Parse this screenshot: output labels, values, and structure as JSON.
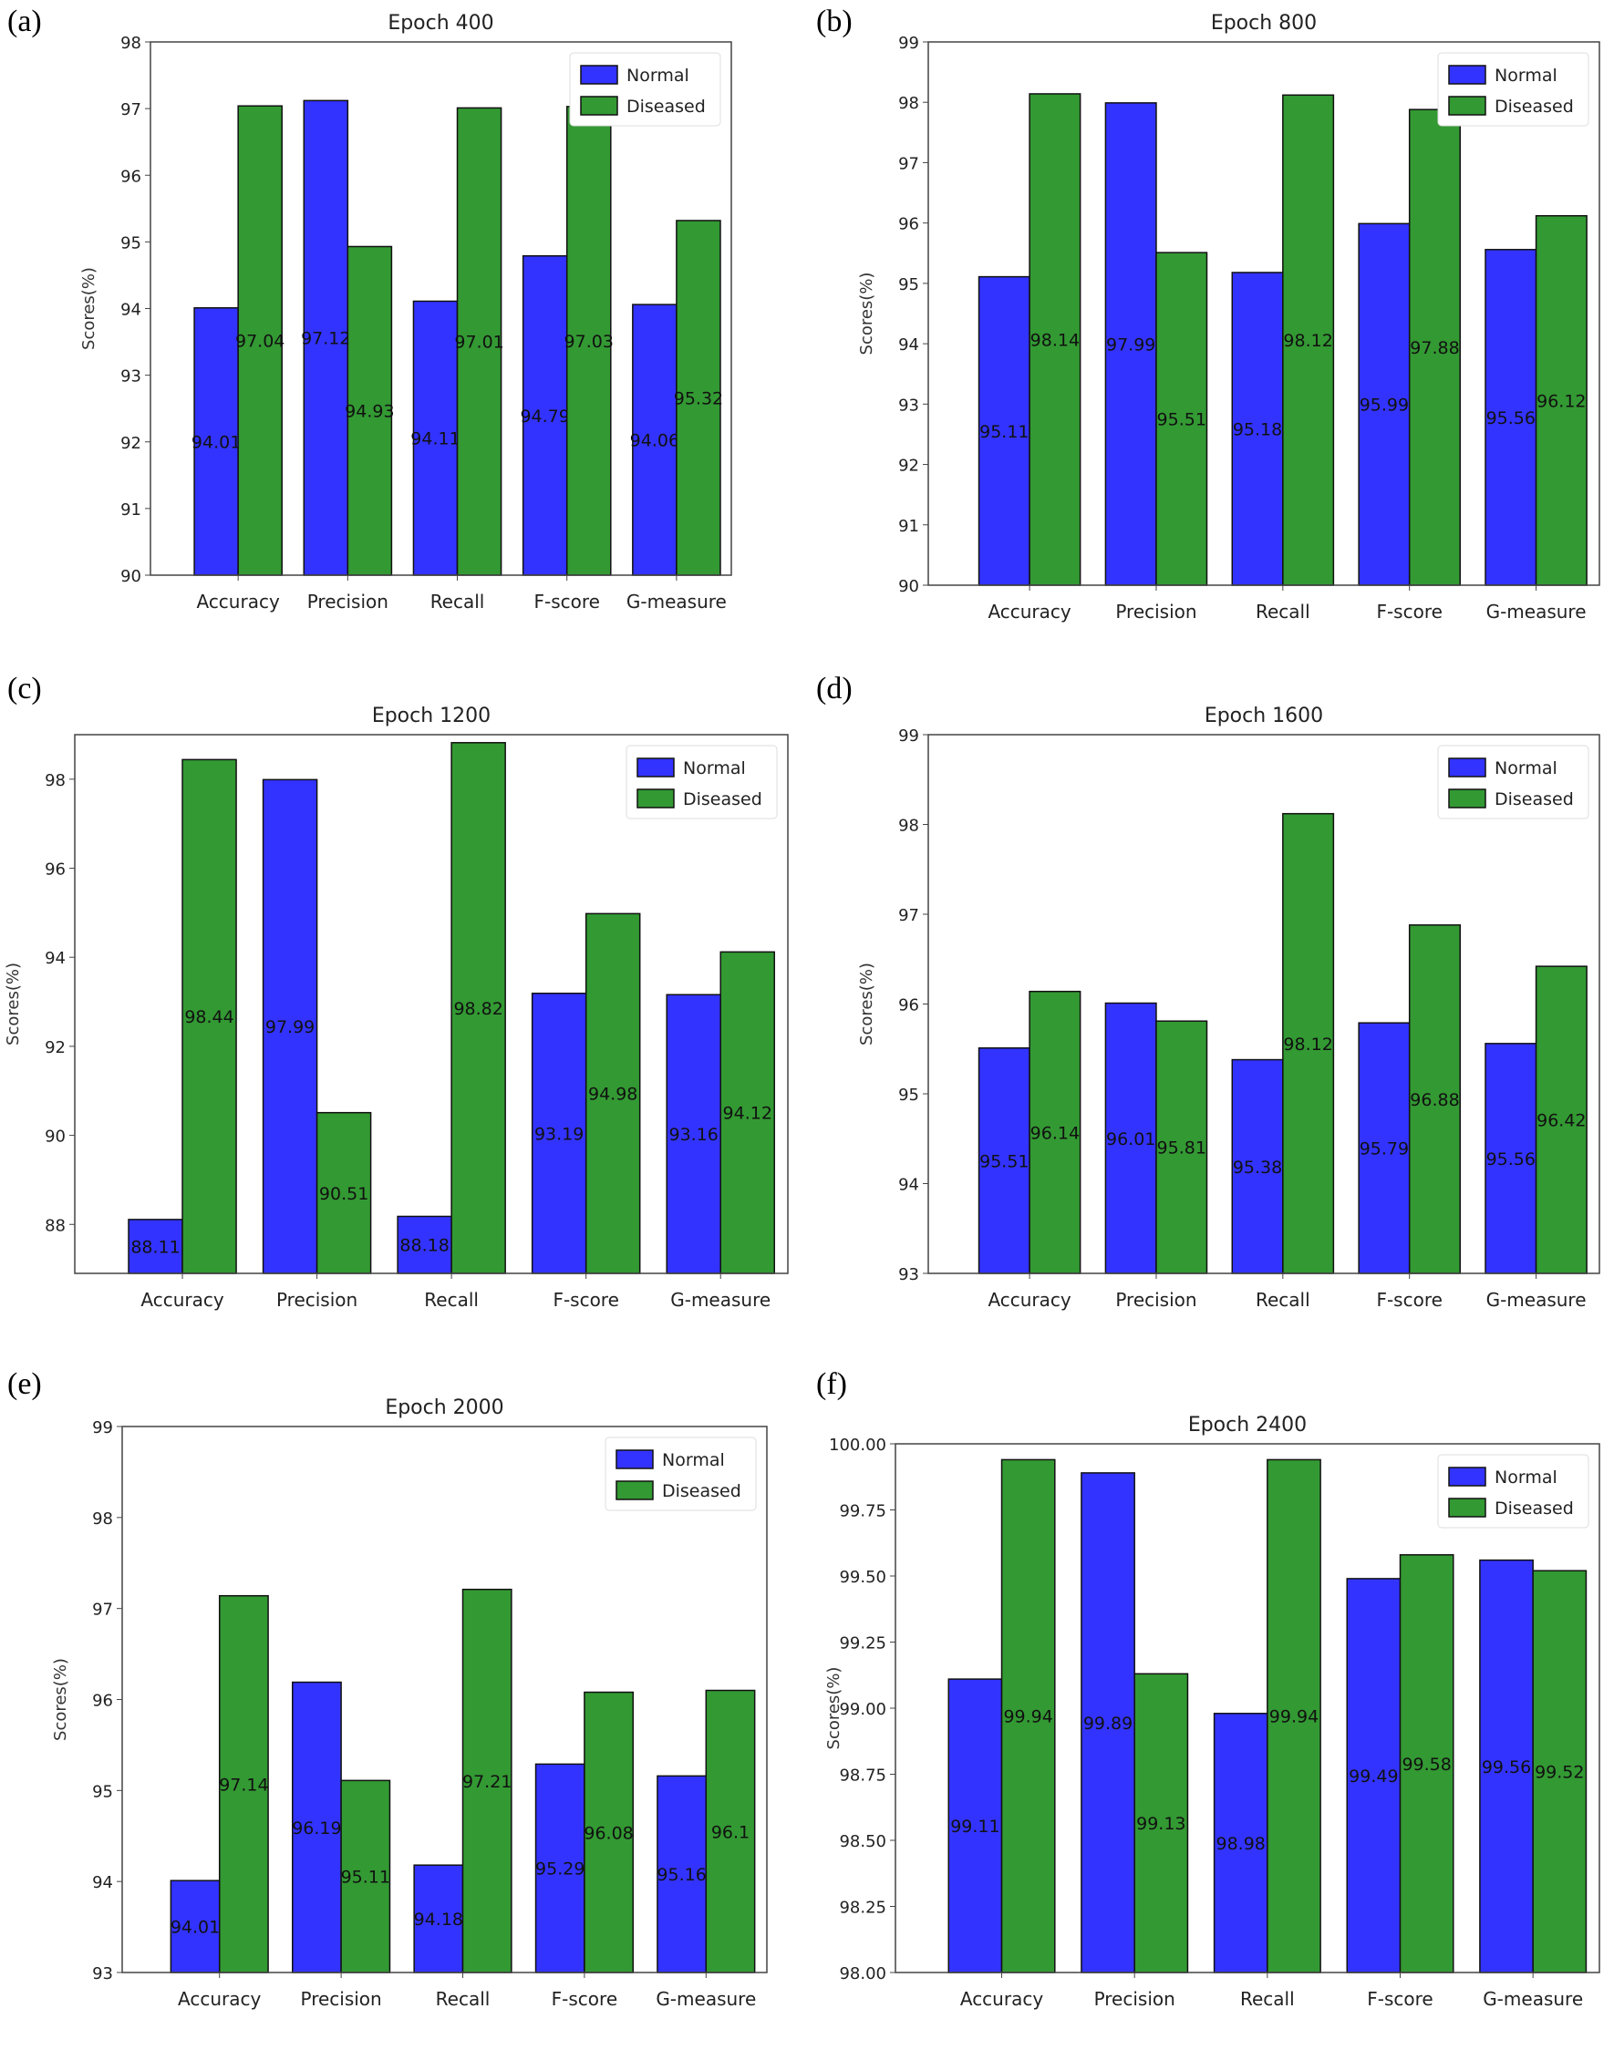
{
  "colors": {
    "Normal": "#3333ff",
    "Diseased": "#339933",
    "edge": "#111111"
  },
  "chart_data": [
    {
      "panel": "(a)",
      "type": "bar",
      "title": "Epoch 400",
      "xlabel": "",
      "ylabel": "Scores(%)",
      "categories": [
        "Accuracy",
        "Precision",
        "Recall",
        "F-score",
        "G-measure"
      ],
      "ylim": [
        90,
        98
      ],
      "yticks": [
        "90",
        "91",
        "92",
        "93",
        "94",
        "95",
        "96",
        "97",
        "98"
      ],
      "legend": "top-right",
      "grid": false,
      "series": [
        {
          "name": "Normal",
          "values": [
            94.01,
            97.12,
            94.11,
            94.79,
            94.06
          ],
          "labels": [
            "94.01",
            "97.12",
            "94.11",
            "94.79",
            "94.06"
          ]
        },
        {
          "name": "Diseased",
          "values": [
            97.04,
            94.93,
            97.01,
            97.03,
            95.32
          ],
          "labels": [
            "97.04",
            "94.93",
            "97.01",
            "97.03",
            "95.32"
          ]
        }
      ]
    },
    {
      "panel": "(b)",
      "type": "bar",
      "title": "Epoch 800",
      "xlabel": "",
      "ylabel": "Scores(%)",
      "categories": [
        "Accuracy",
        "Precision",
        "Recall",
        "F-score",
        "G-measure"
      ],
      "ylim": [
        90,
        99
      ],
      "yticks": [
        "90",
        "91",
        "92",
        "93",
        "94",
        "95",
        "96",
        "97",
        "98",
        "99"
      ],
      "legend": "top-right",
      "grid": false,
      "series": [
        {
          "name": "Normal",
          "values": [
            95.11,
            97.99,
            95.18,
            95.99,
            95.56
          ],
          "labels": [
            "95.11",
            "97.99",
            "95.18",
            "95.99",
            "95.56"
          ]
        },
        {
          "name": "Diseased",
          "values": [
            98.14,
            95.51,
            98.12,
            97.88,
            96.12
          ],
          "labels": [
            "98.14",
            "95.51",
            "98.12",
            "97.88",
            "96.12"
          ]
        }
      ]
    },
    {
      "panel": "(c)",
      "type": "bar",
      "title": "Epoch 1200",
      "xlabel": "",
      "ylabel": "Scores(%)",
      "categories": [
        "Accuracy",
        "Precision",
        "Recall",
        "F-score",
        "G-measure"
      ],
      "ylim": [
        86.9,
        99
      ],
      "yticks": [
        "88",
        "90",
        "92",
        "94",
        "96",
        "98"
      ],
      "legend": "top-right",
      "grid": false,
      "series": [
        {
          "name": "Normal",
          "values": [
            88.11,
            97.99,
            88.18,
            93.19,
            93.16
          ],
          "labels": [
            "88.11",
            "97.99",
            "88.18",
            "93.19",
            "93.16"
          ]
        },
        {
          "name": "Diseased",
          "values": [
            98.44,
            90.51,
            98.82,
            94.98,
            94.12
          ],
          "labels": [
            "98.44",
            "90.51",
            "98.82",
            "94.98",
            "94.12"
          ]
        }
      ]
    },
    {
      "panel": "(d)",
      "type": "bar",
      "title": "Epoch 1600",
      "xlabel": "",
      "ylabel": "Scores(%)",
      "categories": [
        "Accuracy",
        "Precision",
        "Recall",
        "F-score",
        "G-measure"
      ],
      "ylim": [
        93,
        99
      ],
      "yticks": [
        "93",
        "94",
        "95",
        "96",
        "97",
        "98",
        "99"
      ],
      "legend": "top-right",
      "grid": false,
      "series": [
        {
          "name": "Normal",
          "values": [
            95.51,
            96.01,
            95.38,
            95.79,
            95.56
          ],
          "labels": [
            "95.51",
            "96.01",
            "95.38",
            "95.79",
            "95.56"
          ]
        },
        {
          "name": "Diseased",
          "values": [
            96.14,
            95.81,
            98.12,
            96.88,
            96.42
          ],
          "labels": [
            "96.14",
            "95.81",
            "98.12",
            "96.88",
            "96.42"
          ]
        }
      ]
    },
    {
      "panel": "(e)",
      "type": "bar",
      "title": "Epoch 2000",
      "xlabel": "",
      "ylabel": "Scores(%)",
      "categories": [
        "Accuracy",
        "Precision",
        "Recall",
        "F-score",
        "G-measure"
      ],
      "ylim": [
        93,
        99
      ],
      "yticks": [
        "93",
        "94",
        "95",
        "96",
        "97",
        "98",
        "99"
      ],
      "legend": "top-right",
      "grid": false,
      "series": [
        {
          "name": "Normal",
          "values": [
            94.01,
            96.19,
            94.18,
            95.29,
            95.16
          ],
          "labels": [
            "94.01",
            "96.19",
            "94.18",
            "95.29",
            "95.16"
          ]
        },
        {
          "name": "Diseased",
          "values": [
            97.14,
            95.11,
            97.21,
            96.08,
            96.1
          ],
          "labels": [
            "97.14",
            "95.11",
            "97.21",
            "96.08",
            "96.1"
          ]
        }
      ]
    },
    {
      "panel": "(f)",
      "type": "bar",
      "title": "Epoch 2400",
      "xlabel": "",
      "ylabel": "Scores(%)",
      "categories": [
        "Accuracy",
        "Precision",
        "Recall",
        "F-score",
        "G-measure"
      ],
      "ylim": [
        98,
        100
      ],
      "yticks": [
        "98.00",
        "98.25",
        "98.50",
        "98.75",
        "99.00",
        "99.25",
        "99.50",
        "99.75",
        "100.00"
      ],
      "legend": "top-right",
      "grid": false,
      "series": [
        {
          "name": "Normal",
          "values": [
            99.11,
            99.89,
            98.98,
            99.49,
            99.56
          ],
          "labels": [
            "99.11",
            "99.89",
            "98.98",
            "99.49",
            "99.56"
          ]
        },
        {
          "name": "Diseased",
          "values": [
            99.94,
            99.13,
            99.94,
            99.58,
            99.52
          ],
          "labels": [
            "99.94",
            "99.13",
            "99.94",
            "99.58",
            "99.52"
          ]
        }
      ]
    }
  ]
}
